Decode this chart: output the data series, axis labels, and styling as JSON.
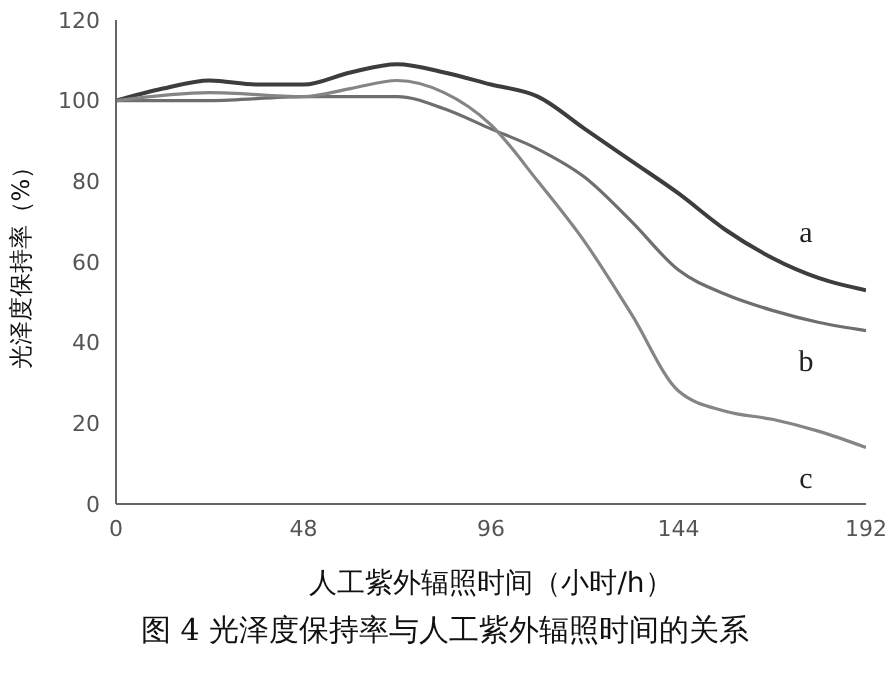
{
  "chart_data": {
    "type": "line",
    "title": "图 4 光泽度保持率与人工紫外辐照时间的关系",
    "xlabel": "人工紫外辐照时间（小时/h）",
    "ylabel": "光泽度保持率（%）",
    "xlim": [
      0,
      192
    ],
    "xticks": [
      0,
      48,
      96,
      144,
      192
    ],
    "ylim": [
      0,
      120
    ],
    "yticks": [
      0,
      20,
      40,
      60,
      80,
      100,
      120
    ],
    "marker": "none",
    "line_style": "solid",
    "series": [
      {
        "name": "a",
        "color": "#3d3d3d",
        "x": [
          0,
          12,
          24,
          36,
          48,
          60,
          72,
          84,
          96,
          108,
          120,
          132,
          144,
          156,
          168,
          180,
          192
        ],
        "values": [
          100,
          103,
          105,
          104,
          104,
          107,
          109,
          107,
          104,
          101,
          93,
          85,
          77,
          68,
          61,
          56,
          53
        ]
      },
      {
        "name": "b",
        "color": "#6e6e6e",
        "x": [
          0,
          24,
          48,
          72,
          84,
          96,
          108,
          120,
          132,
          144,
          156,
          168,
          180,
          192
        ],
        "values": [
          100,
          100,
          101,
          101,
          98,
          93,
          88,
          81,
          70,
          58,
          52,
          48,
          45,
          43
        ]
      },
      {
        "name": "c",
        "color": "#858585",
        "x": [
          0,
          24,
          48,
          60,
          72,
          84,
          96,
          108,
          120,
          132,
          144,
          156,
          168,
          180,
          192
        ],
        "values": [
          100,
          102,
          101,
          103,
          105,
          102,
          94,
          80,
          65,
          47,
          28,
          23,
          21,
          18,
          14
        ]
      }
    ]
  }
}
